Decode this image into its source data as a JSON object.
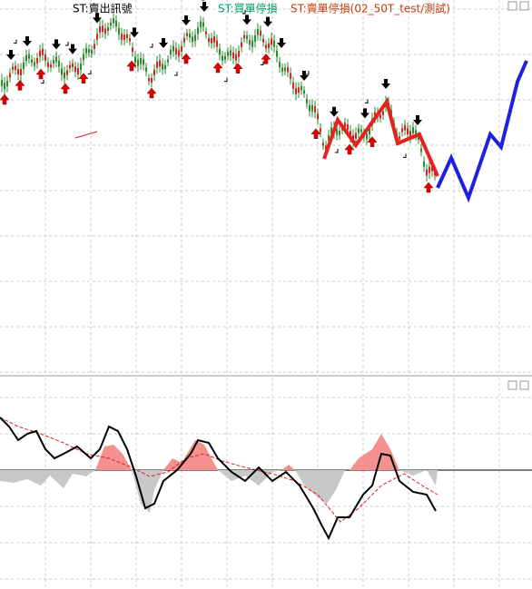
{
  "legend": {
    "items": [
      "ST:賣出訊號",
      "ST:買單停損",
      "ST:賣單停損(02_50T_test/測試)"
    ]
  }
}
